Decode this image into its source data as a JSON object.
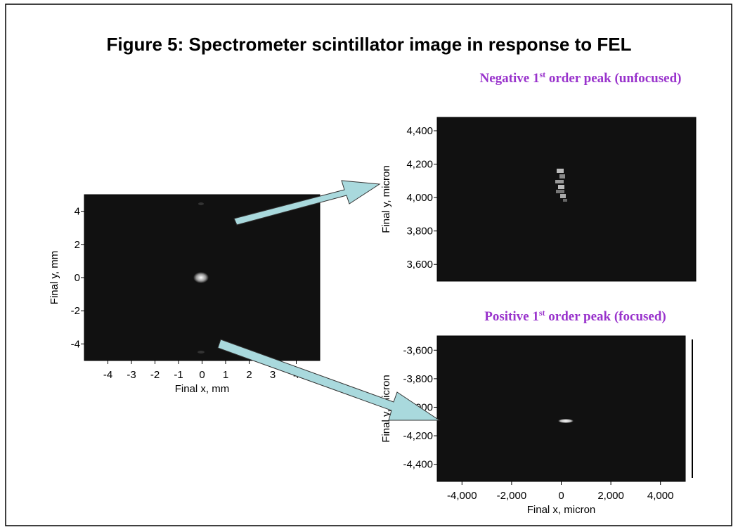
{
  "title": "Figure 5: Spectrometer scintillator image in response to FEL",
  "chart_data": [
    {
      "type": "image",
      "xlabel": "Final x, mm",
      "ylabel": "Final y, mm",
      "xlim": [
        -5,
        5
      ],
      "ylim": [
        -5,
        5
      ],
      "xticks": [
        -4,
        -3,
        -2,
        -1,
        0,
        1,
        2,
        3,
        4
      ],
      "yticks": [
        4,
        2,
        0,
        -2,
        -4
      ]
    },
    {
      "type": "image",
      "title": [
        "Negative 1",
        "st",
        " order peak (unfocused)"
      ],
      "title_color": "#9933cc",
      "ylabel": "Final y, micron",
      "ylim": [
        3500,
        4480
      ],
      "yticks": [
        {
          "value": 4400,
          "label": "4,400"
        },
        {
          "value": 4200,
          "label": "4,200"
        },
        {
          "value": 4000,
          "label": "4,000"
        },
        {
          "value": 3800,
          "label": "3,800"
        },
        {
          "value": 3600,
          "label": "3,600"
        }
      ]
    },
    {
      "type": "image",
      "title": [
        "Positive 1",
        "st",
        " order peak (focused)"
      ],
      "title_color": "#9933cc",
      "xlabel": "Final x, micron",
      "ylabel": "Final y, micron",
      "xlim": [
        -5000,
        5000
      ],
      "ylim": [
        -4520,
        -3500
      ],
      "xticks": [
        {
          "value": -4000,
          "label": "-4,000"
        },
        {
          "value": -2000,
          "label": "-2,000"
        },
        0,
        {
          "value": 2000,
          "label": "2,000"
        },
        {
          "value": 4000,
          "label": "4,000"
        }
      ],
      "yticks": [
        {
          "value": -3600,
          "label": "-3,600"
        },
        {
          "value": -3800,
          "label": "-3,800"
        },
        {
          "value": -4000,
          "label": "-4,000"
        },
        {
          "value": -4200,
          "label": "-4,200"
        },
        {
          "value": -4400,
          "label": "-4,400"
        }
      ]
    }
  ]
}
